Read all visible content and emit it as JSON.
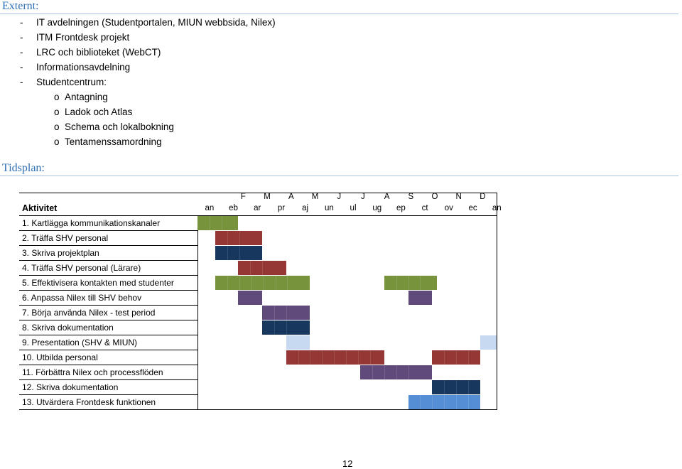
{
  "headings": {
    "externt": "Externt:",
    "tidsplan": "Tidsplan:"
  },
  "externt_list": [
    {
      "bullet": "-",
      "text": "IT avdelningen (Studentportalen, MIUN webbsida, Nilex)",
      "level": 1
    },
    {
      "bullet": "-",
      "text": "ITM Frontdesk projekt",
      "level": 1
    },
    {
      "bullet": "-",
      "text": "LRC och biblioteket (WebCT)",
      "level": 1
    },
    {
      "bullet": "-",
      "text": "Informationsavdelning",
      "level": 1
    },
    {
      "bullet": "-",
      "text": "Studentcentrum:",
      "level": 1
    },
    {
      "bullet": "o",
      "text": "Antagning",
      "level": 2
    },
    {
      "bullet": "o",
      "text": "Ladok och Atlas",
      "level": 2
    },
    {
      "bullet": "o",
      "text": "Schema och lokalbokning",
      "level": 2
    },
    {
      "bullet": "o",
      "text": "Tentamenssamordning",
      "level": 2
    }
  ],
  "gantt": {
    "header_label": "Aktivitet",
    "months_top": [
      "",
      "F",
      "M",
      "A",
      "M",
      "J",
      "J",
      "A",
      "S",
      "O",
      "N",
      "D",
      ""
    ],
    "months_bottom": [
      "an",
      "eb",
      "ar",
      "pr",
      "aj",
      "un",
      "ul",
      "ug",
      "ep",
      "ct",
      "ov",
      "ec",
      "an"
    ],
    "colors": {
      "green": "#77933c",
      "red": "#953735",
      "navy": "#17375e",
      "purple": "#604a7b",
      "lightblue": "#c6d9f1",
      "blue": "#558ed5"
    },
    "activities": [
      {
        "label": "1. Kartlägga kommunikationskanaler",
        "bars": [
          {
            "start": 0,
            "end": 1.7,
            "color": "green"
          }
        ]
      },
      {
        "label": "2. Träffa SHV personal",
        "bars": [
          {
            "start": 0.75,
            "end": 2.7,
            "color": "red"
          }
        ]
      },
      {
        "label": "3. Skriva projektplan",
        "bars": [
          {
            "start": 0.75,
            "end": 2.7,
            "color": "navy"
          }
        ]
      },
      {
        "label": "4. Träffa SHV personal (Lärare)",
        "bars": [
          {
            "start": 1.7,
            "end": 3.7,
            "color": "red"
          }
        ]
      },
      {
        "label": "5. Effektivisera kontakten med studenter",
        "bars": [
          {
            "start": 0.75,
            "end": 4.7,
            "color": "green"
          },
          {
            "start": 7.8,
            "end": 10.0,
            "color": "green"
          }
        ]
      },
      {
        "label": "6. Anpassa Nilex till SHV behov",
        "bars": [
          {
            "start": 1.7,
            "end": 2.7,
            "color": "purple"
          },
          {
            "start": 8.8,
            "end": 9.8,
            "color": "purple"
          }
        ]
      },
      {
        "label": "7. Börja använda Nilex - test period",
        "bars": [
          {
            "start": 2.7,
            "end": 4.7,
            "color": "purple"
          }
        ]
      },
      {
        "label": "8. Skriva dokumentation",
        "bars": [
          {
            "start": 2.7,
            "end": 4.7,
            "color": "navy"
          }
        ]
      },
      {
        "label": "9. Presentation (SHV & MIUN)",
        "bars": [
          {
            "start": 3.7,
            "end": 4.7,
            "color": "lightblue"
          },
          {
            "start": 11.8,
            "end": 12.6,
            "color": "lightblue"
          }
        ]
      },
      {
        "label": "10. Utbilda personal",
        "bars": [
          {
            "start": 3.7,
            "end": 7.8,
            "color": "red"
          },
          {
            "start": 9.8,
            "end": 11.8,
            "color": "red"
          }
        ]
      },
      {
        "label": "11. Förbättra Nilex och processflöden",
        "bars": [
          {
            "start": 6.8,
            "end": 9.8,
            "color": "purple"
          }
        ]
      },
      {
        "label": "12. Skriva dokumentation",
        "bars": [
          {
            "start": 9.8,
            "end": 11.8,
            "color": "navy"
          }
        ]
      },
      {
        "label": "13. Utvärdera Frontdesk funktionen",
        "bars": [
          {
            "start": 8.8,
            "end": 11.8,
            "color": "blue"
          }
        ]
      }
    ]
  },
  "page_number": "12"
}
